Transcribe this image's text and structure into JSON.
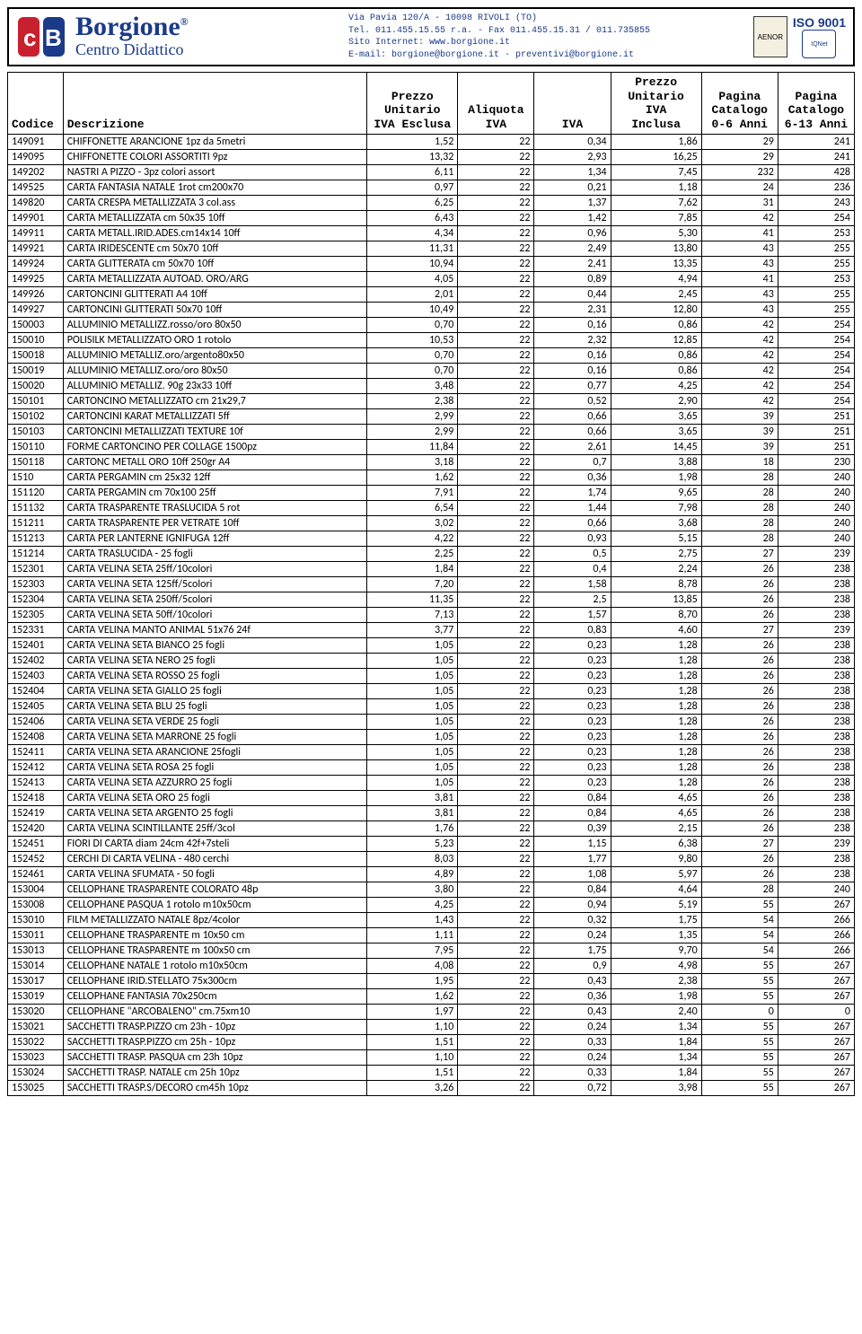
{
  "header": {
    "brand_name": "Borgione",
    "brand_sub": "Centro Didattico",
    "address_l1": "Via Pavia 120/A - 10098 RIVOLI (TO)",
    "address_l2": "Tel. 011.455.15.55 r.a. - Fax 011.455.15.31 / 011.735855",
    "address_l3": "Sito Internet: www.borgione.it",
    "address_l4": "E-mail: borgione@borgione.it - preventivi@borgione.it",
    "iso_label": "ISO 9001",
    "cert1": "AENOR",
    "cert2": "IQNet"
  },
  "columns": {
    "codice": "Codice",
    "descrizione": "Descrizione",
    "pu_excl": "Prezzo\nUnitario\nIVA Esclusa",
    "aliq": "Aliquota\nIVA",
    "iva": "IVA",
    "pu_incl": "Prezzo\nUnitario\nIVA\nInclusa",
    "pag_06": "Pagina\nCatalogo\n0-6 Anni",
    "pag_613": "Pagina\nCatalogo\n6-13 Anni"
  },
  "rows": [
    [
      "149091",
      "CHIFFONETTE ARANCIONE 1pz da 5metri",
      "1,52",
      "22",
      "0,34",
      "1,86",
      "29",
      "241"
    ],
    [
      "149095",
      "CHIFFONETTE COLORI ASSORTITI 9pz",
      "13,32",
      "22",
      "2,93",
      "16,25",
      "29",
      "241"
    ],
    [
      "149202",
      "NASTRI A PIZZO - 3pz colori assort",
      "6,11",
      "22",
      "1,34",
      "7,45",
      "232",
      "428"
    ],
    [
      "149525",
      "CARTA FANTASIA NATALE 1rot cm200x70",
      "0,97",
      "22",
      "0,21",
      "1,18",
      "24",
      "236"
    ],
    [
      "149820",
      "CARTA CRESPA METALLIZZATA 3 col.ass",
      "6,25",
      "22",
      "1,37",
      "7,62",
      "31",
      "243"
    ],
    [
      "149901",
      "CARTA METALLIZZATA cm 50x35 10ff",
      "6,43",
      "22",
      "1,42",
      "7,85",
      "42",
      "254"
    ],
    [
      "149911",
      "CARTA METALL.IRID.ADES.cm14x14 10ff",
      "4,34",
      "22",
      "0,96",
      "5,30",
      "41",
      "253"
    ],
    [
      "149921",
      "CARTA IRIDESCENTE cm 50x70 10ff",
      "11,31",
      "22",
      "2,49",
      "13,80",
      "43",
      "255"
    ],
    [
      "149924",
      "CARTA GLITTERATA cm 50x70 10ff",
      "10,94",
      "22",
      "2,41",
      "13,35",
      "43",
      "255"
    ],
    [
      "149925",
      "CARTA METALLIZZATA AUTOAD. ORO/ARG",
      "4,05",
      "22",
      "0,89",
      "4,94",
      "41",
      "253"
    ],
    [
      "149926",
      "CARTONCINI GLITTERATI A4 10ff",
      "2,01",
      "22",
      "0,44",
      "2,45",
      "43",
      "255"
    ],
    [
      "149927",
      "CARTONCINI GLITTERATI 50x70 10ff",
      "10,49",
      "22",
      "2,31",
      "12,80",
      "43",
      "255"
    ],
    [
      "150003",
      "ALLUMINIO METALLIZZ.rosso/oro 80x50",
      "0,70",
      "22",
      "0,16",
      "0,86",
      "42",
      "254"
    ],
    [
      "150010",
      "POLISILK METALLIZZATO ORO 1 rotolo",
      "10,53",
      "22",
      "2,32",
      "12,85",
      "42",
      "254"
    ],
    [
      "150018",
      "ALLUMINIO METALLIZ.oro/argento80x50",
      "0,70",
      "22",
      "0,16",
      "0,86",
      "42",
      "254"
    ],
    [
      "150019",
      "ALLUMINIO METALLIZ.oro/oro 80x50",
      "0,70",
      "22",
      "0,16",
      "0,86",
      "42",
      "254"
    ],
    [
      "150020",
      "ALLUMINIO METALLIZ. 90g 23x33 10ff",
      "3,48",
      "22",
      "0,77",
      "4,25",
      "42",
      "254"
    ],
    [
      "150101",
      "CARTONCINO METALLIZZATO cm 21x29,7",
      "2,38",
      "22",
      "0,52",
      "2,90",
      "42",
      "254"
    ],
    [
      "150102",
      "CARTONCINI KARAT METALLIZZATI 5ff",
      "2,99",
      "22",
      "0,66",
      "3,65",
      "39",
      "251"
    ],
    [
      "150103",
      "CARTONCINI METALLIZZATI TEXTURE 10f",
      "2,99",
      "22",
      "0,66",
      "3,65",
      "39",
      "251"
    ],
    [
      "150110",
      "FORME CARTONCINO PER COLLAGE 1500pz",
      "11,84",
      "22",
      "2,61",
      "14,45",
      "39",
      "251"
    ],
    [
      "150118",
      "CARTONC METALL ORO 10ff 250gr A4",
      "3,18",
      "22",
      "0,7",
      "3,88",
      "18",
      "230"
    ],
    [
      "1510",
      "CARTA PERGAMIN cm 25x32 12ff",
      "1,62",
      "22",
      "0,36",
      "1,98",
      "28",
      "240"
    ],
    [
      "151120",
      "CARTA PERGAMIN cm 70x100 25ff",
      "7,91",
      "22",
      "1,74",
      "9,65",
      "28",
      "240"
    ],
    [
      "151132",
      "CARTA TRASPARENTE TRASLUCIDA 5 rot",
      "6,54",
      "22",
      "1,44",
      "7,98",
      "28",
      "240"
    ],
    [
      "151211",
      "CARTA TRASPARENTE PER VETRATE 10ff",
      "3,02",
      "22",
      "0,66",
      "3,68",
      "28",
      "240"
    ],
    [
      "151213",
      "CARTA PER LANTERNE IGNIFUGA 12ff",
      "4,22",
      "22",
      "0,93",
      "5,15",
      "28",
      "240"
    ],
    [
      "151214",
      "CARTA TRASLUCIDA - 25 fogli",
      "2,25",
      "22",
      "0,5",
      "2,75",
      "27",
      "239"
    ],
    [
      "152301",
      "CARTA VELINA SETA 25ff/10colori",
      "1,84",
      "22",
      "0,4",
      "2,24",
      "26",
      "238"
    ],
    [
      "152303",
      "CARTA VELINA SETA 125ff/5colori",
      "7,20",
      "22",
      "1,58",
      "8,78",
      "26",
      "238"
    ],
    [
      "152304",
      "CARTA VELINA SETA 250ff/5colori",
      "11,35",
      "22",
      "2,5",
      "13,85",
      "26",
      "238"
    ],
    [
      "152305",
      "CARTA VELINA SETA 50ff/10colori",
      "7,13",
      "22",
      "1,57",
      "8,70",
      "26",
      "238"
    ],
    [
      "152331",
      "CARTA VELINA MANTO ANIMAL 51x76 24f",
      "3,77",
      "22",
      "0,83",
      "4,60",
      "27",
      "239"
    ],
    [
      "152401",
      "CARTA VELINA SETA BIANCO 25 fogli",
      "1,05",
      "22",
      "0,23",
      "1,28",
      "26",
      "238"
    ],
    [
      "152402",
      "CARTA VELINA SETA NERO 25 fogli",
      "1,05",
      "22",
      "0,23",
      "1,28",
      "26",
      "238"
    ],
    [
      "152403",
      "CARTA VELINA SETA ROSSO 25 fogli",
      "1,05",
      "22",
      "0,23",
      "1,28",
      "26",
      "238"
    ],
    [
      "152404",
      "CARTA VELINA SETA GIALLO 25 fogli",
      "1,05",
      "22",
      "0,23",
      "1,28",
      "26",
      "238"
    ],
    [
      "152405",
      "CARTA VELINA SETA BLU 25 fogli",
      "1,05",
      "22",
      "0,23",
      "1,28",
      "26",
      "238"
    ],
    [
      "152406",
      "CARTA VELINA SETA VERDE 25 fogli",
      "1,05",
      "22",
      "0,23",
      "1,28",
      "26",
      "238"
    ],
    [
      "152408",
      "CARTA VELINA SETA MARRONE 25 fogli",
      "1,05",
      "22",
      "0,23",
      "1,28",
      "26",
      "238"
    ],
    [
      "152411",
      "CARTA VELINA SETA ARANCIONE 25fogli",
      "1,05",
      "22",
      "0,23",
      "1,28",
      "26",
      "238"
    ],
    [
      "152412",
      "CARTA VELINA SETA ROSA 25 fogli",
      "1,05",
      "22",
      "0,23",
      "1,28",
      "26",
      "238"
    ],
    [
      "152413",
      "CARTA VELINA SETA AZZURRO 25 fogli",
      "1,05",
      "22",
      "0,23",
      "1,28",
      "26",
      "238"
    ],
    [
      "152418",
      "CARTA VELINA SETA ORO 25 fogli",
      "3,81",
      "22",
      "0,84",
      "4,65",
      "26",
      "238"
    ],
    [
      "152419",
      "CARTA VELINA SETA ARGENTO 25 fogli",
      "3,81",
      "22",
      "0,84",
      "4,65",
      "26",
      "238"
    ],
    [
      "152420",
      "CARTA VELINA SCINTILLANTE 25ff/3col",
      "1,76",
      "22",
      "0,39",
      "2,15",
      "26",
      "238"
    ],
    [
      "152451",
      "FIORI DI CARTA diam 24cm 42f+7steli",
      "5,23",
      "22",
      "1,15",
      "6,38",
      "27",
      "239"
    ],
    [
      "152452",
      "CERCHI DI CARTA VELINA - 480 cerchi",
      "8,03",
      "22",
      "1,77",
      "9,80",
      "26",
      "238"
    ],
    [
      "152461",
      "CARTA VELINA SFUMATA - 50 fogli",
      "4,89",
      "22",
      "1,08",
      "5,97",
      "26",
      "238"
    ],
    [
      "153004",
      "CELLOPHANE TRASPARENTE COLORATO 48p",
      "3,80",
      "22",
      "0,84",
      "4,64",
      "28",
      "240"
    ],
    [
      "153008",
      "CELLOPHANE PASQUA 1 rotolo m10x50cm",
      "4,25",
      "22",
      "0,94",
      "5,19",
      "55",
      "267"
    ],
    [
      "153010",
      "FILM METALLIZZATO NATALE 8pz/4color",
      "1,43",
      "22",
      "0,32",
      "1,75",
      "54",
      "266"
    ],
    [
      "153011",
      "CELLOPHANE TRASPARENTE m 10x50 cm",
      "1,11",
      "22",
      "0,24",
      "1,35",
      "54",
      "266"
    ],
    [
      "153013",
      "CELLOPHANE TRASPARENTE m 100x50 cm",
      "7,95",
      "22",
      "1,75",
      "9,70",
      "54",
      "266"
    ],
    [
      "153014",
      "CELLOPHANE NATALE 1 rotolo m10x50cm",
      "4,08",
      "22",
      "0,9",
      "4,98",
      "55",
      "267"
    ],
    [
      "153017",
      "CELLOPHANE IRID.STELLATO 75x300cm",
      "1,95",
      "22",
      "0,43",
      "2,38",
      "55",
      "267"
    ],
    [
      "153019",
      "CELLOPHANE FANTASIA 70x250cm",
      "1,62",
      "22",
      "0,36",
      "1,98",
      "55",
      "267"
    ],
    [
      "153020",
      "CELLOPHANE \"ARCOBALENO\"  cm.75xm10",
      "1,97",
      "22",
      "0,43",
      "2,40",
      "0",
      "0"
    ],
    [
      "153021",
      "SACCHETTI TRASP.PIZZO cm 23h - 10pz",
      "1,10",
      "22",
      "0,24",
      "1,34",
      "55",
      "267"
    ],
    [
      "153022",
      "SACCHETTI TRASP.PIZZO cm 25h - 10pz",
      "1,51",
      "22",
      "0,33",
      "1,84",
      "55",
      "267"
    ],
    [
      "153023",
      "SACCHETTI TRASP. PASQUA cm 23h 10pz",
      "1,10",
      "22",
      "0,24",
      "1,34",
      "55",
      "267"
    ],
    [
      "153024",
      "SACCHETTI TRASP. NATALE cm 25h 10pz",
      "1,51",
      "22",
      "0,33",
      "1,84",
      "55",
      "267"
    ],
    [
      "153025",
      "SACCHETTI TRASP.S/DECORO cm45h 10pz",
      "3,26",
      "22",
      "0,72",
      "3,98",
      "55",
      "267"
    ]
  ]
}
